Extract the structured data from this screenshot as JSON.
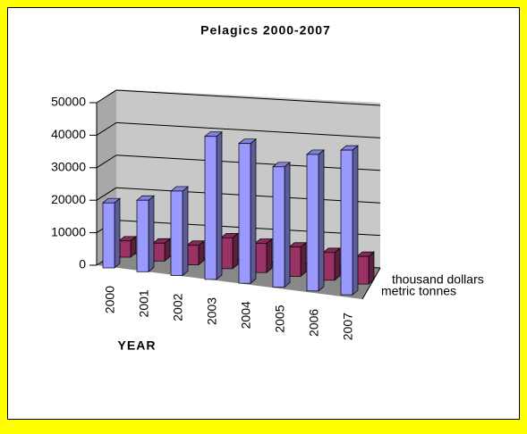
{
  "chart_data": {
    "type": "bar3d",
    "title": "Pelagics 2000-2007",
    "x_label": "YEAR",
    "categories": [
      "2000",
      "2001",
      "2002",
      "2003",
      "2004",
      "2005",
      "2006",
      "2007"
    ],
    "series": [
      {
        "name": "metric tonnes",
        "color": "#9999ff",
        "values": [
          20000,
          22000,
          26000,
          44000,
          43000,
          37000,
          42000,
          44500
        ]
      },
      {
        "name": "thousand dollars",
        "color": "#993366",
        "values": [
          5000,
          5500,
          6000,
          9500,
          9000,
          9000,
          8500,
          8500
        ]
      }
    ],
    "ylim": [
      0,
      50000
    ],
    "yticks": [
      0,
      10000,
      20000,
      30000,
      40000,
      50000
    ],
    "grid": true
  }
}
